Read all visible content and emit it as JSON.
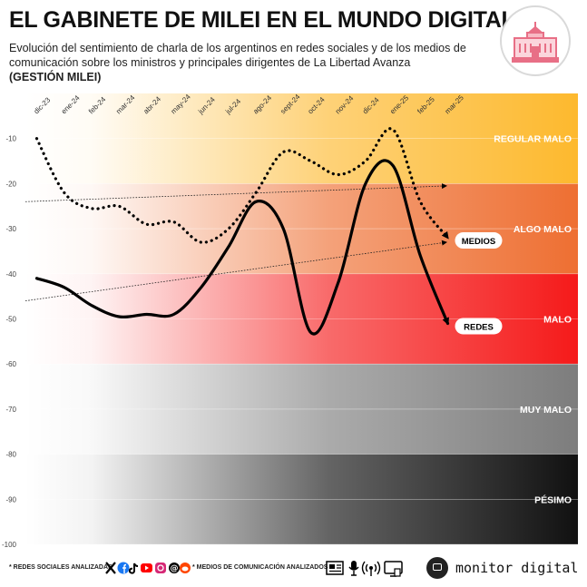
{
  "header": {
    "title": "EL GABINETE DE MILEI EN EL MUNDO DIGITAL",
    "subtitle": "Evolución del sentimiento de charla de los argentinos en redes sociales y de los medios de comunicación sobre los ministros y principales dirigentes de La Libertad Avanza",
    "subtitle_bold": "(GESTIÓN MILEI)"
  },
  "logo": {
    "icon": "casa-rosada-icon",
    "color": "#e86f86"
  },
  "chart_data": {
    "type": "line",
    "categories": [
      "dic-23",
      "ene-24",
      "feb-24",
      "mar-24",
      "abr-24",
      "may-24",
      "jun-24",
      "jul-24",
      "ago-24",
      "sept-24",
      "oct-24",
      "nov-24",
      "dic-24",
      "ene-25",
      "feb-25",
      "mar-25"
    ],
    "ylim": [
      -100,
      0
    ],
    "y_ticks": [
      -10,
      -20,
      -30,
      -40,
      -50,
      -60,
      -70,
      -80,
      -90,
      -100
    ],
    "bands": [
      {
        "label": "REGULAR MALO",
        "from": 0,
        "to": -20,
        "color": "#fdb92e"
      },
      {
        "label": "ALGO MALO",
        "from": -20,
        "to": -40,
        "color": "#ee6f32"
      },
      {
        "label": "MALO",
        "from": -40,
        "to": -60,
        "color": "#f51a1a"
      },
      {
        "label": "MUY MALO",
        "from": -60,
        "to": -80,
        "color": "#7d7d7d"
      },
      {
        "label": "PÉSIMO",
        "from": -80,
        "to": -100,
        "color": "#111111"
      }
    ],
    "series": [
      {
        "name": "MEDIOS",
        "style": "dotted",
        "x": [
          0,
          1,
          2,
          3,
          4,
          5,
          6,
          7,
          8,
          9,
          10,
          11,
          12,
          13,
          14,
          15
        ],
        "values": [
          -10,
          -22,
          -25.5,
          -25,
          -29,
          -28.5,
          -33,
          -30,
          -22,
          -13,
          -15,
          -18,
          -15,
          -8,
          -24,
          -32
        ]
      },
      {
        "name": "REDES",
        "style": "solid",
        "x": [
          0,
          1,
          2,
          3,
          4,
          5,
          6,
          7,
          8,
          9,
          10,
          11,
          12,
          13,
          14,
          15
        ],
        "values": [
          -41,
          -43,
          -47,
          -49.5,
          -49,
          -49,
          -43,
          -34,
          -24,
          -30,
          -53,
          -42,
          -20,
          -16,
          -36,
          -51
        ]
      }
    ],
    "trends": [
      {
        "series": "MEDIOS",
        "from": -24,
        "to": -20.5
      },
      {
        "series": "REDES",
        "from": -46,
        "to": -33
      }
    ]
  },
  "footer": {
    "social_label": "* REDES SOCIALES ANALIZADAS",
    "media_label": "* MEDIOS DE COMUNICACIÓN ANALIZADOS",
    "brand": "monitor digital",
    "social_icons": [
      "x-icon",
      "facebook-icon",
      "tiktok-icon",
      "youtube-icon",
      "instagram-icon",
      "threads-icon",
      "reddit-icon"
    ],
    "media_icons": [
      "newspaper-icon",
      "microphone-icon",
      "radio-icon",
      "tv-icon"
    ]
  }
}
